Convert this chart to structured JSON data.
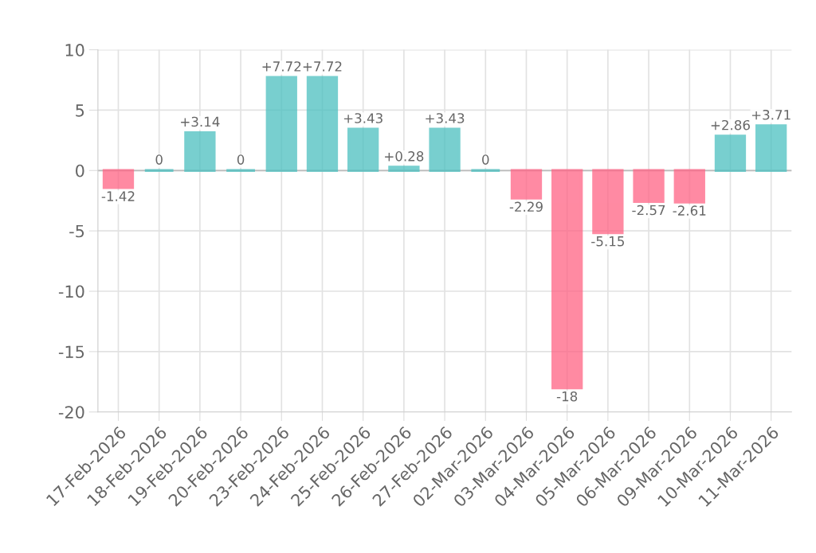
{
  "chart_data": {
    "type": "bar",
    "categories": [
      "17-Feb-2026",
      "18-Feb-2026",
      "19-Feb-2026",
      "20-Feb-2026",
      "23-Feb-2026",
      "24-Feb-2026",
      "25-Feb-2026",
      "26-Feb-2026",
      "27-Feb-2026",
      "02-Mar-2026",
      "03-Mar-2026",
      "04-Mar-2026",
      "05-Mar-2026",
      "06-Mar-2026",
      "09-Mar-2026",
      "10-Mar-2026",
      "11-Mar-2026"
    ],
    "values": [
      -1.42,
      0,
      3.14,
      0,
      7.72,
      7.72,
      3.43,
      0.28,
      3.43,
      0,
      -2.29,
      -18,
      -5.15,
      -2.57,
      -2.61,
      2.86,
      3.71
    ],
    "value_labels": [
      "-1.42",
      "0",
      "+3.14",
      "0",
      "+7.72",
      "+7.72",
      "+3.43",
      "+0.28",
      "+3.43",
      "0",
      "-2.29",
      "-18",
      "-5.15",
      "-2.57",
      "-2.61",
      "+2.86",
      "+3.71"
    ],
    "colors": [
      "#ff6384",
      "#4bc0c0",
      "#4bc0c0",
      "#4bc0c0",
      "#4bc0c0",
      "#4bc0c0",
      "#4bc0c0",
      "#4bc0c0",
      "#4bc0c0",
      "#4bc0c0",
      "#ff6384",
      "#ff6384",
      "#ff6384",
      "#ff6384",
      "#ff6384",
      "#4bc0c0",
      "#4bc0c0"
    ],
    "ylim": [
      -20,
      10
    ],
    "yticks": [
      -20,
      -15,
      -10,
      -5,
      0,
      5,
      10
    ],
    "grid": true
  }
}
